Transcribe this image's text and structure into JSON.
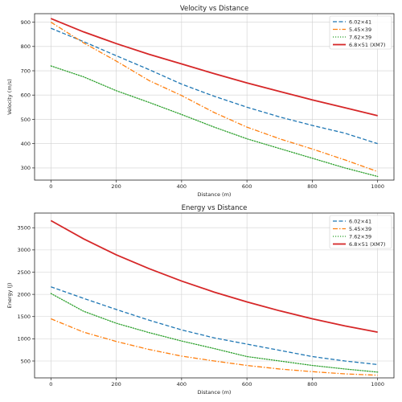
{
  "chart_data": [
    {
      "type": "line",
      "title": "Velocity vs Distance",
      "xlabel": "Distance (m)",
      "ylabel": "Velocity (m/s)",
      "xlim": [
        -50,
        1050
      ],
      "ylim": [
        250,
        935
      ],
      "xticks": [
        0,
        200,
        400,
        600,
        800,
        1000
      ],
      "yticks": [
        300,
        400,
        500,
        600,
        700,
        800,
        900
      ],
      "grid": true,
      "legend_position": "top-right",
      "x": [
        0,
        100,
        200,
        300,
        400,
        500,
        600,
        700,
        800,
        900,
        1000
      ],
      "series": [
        {
          "name": "6.02×41",
          "color": "#1f77b4",
          "style": "dashed",
          "values": [
            875,
            820,
            762,
            705,
            645,
            595,
            550,
            510,
            475,
            443,
            400
          ]
        },
        {
          "name": "5.45×39",
          "color": "#ff7f0e",
          "style": "dashdot",
          "values": [
            900,
            815,
            740,
            660,
            598,
            528,
            468,
            420,
            378,
            333,
            285
          ]
        },
        {
          "name": "7.62×39",
          "color": "#2ca02c",
          "style": "dotted",
          "values": [
            720,
            675,
            618,
            570,
            520,
            468,
            420,
            380,
            340,
            300,
            265
          ]
        },
        {
          "name": "6.8×51 (XM7)",
          "color": "#d62728",
          "style": "solid",
          "values": [
            915,
            860,
            812,
            768,
            728,
            688,
            650,
            615,
            580,
            548,
            515
          ]
        }
      ]
    },
    {
      "type": "line",
      "title": "Energy vs Distance",
      "xlabel": "Distance (m)",
      "ylabel": "Energy (J)",
      "xlim": [
        -50,
        1050
      ],
      "ylim": [
        120,
        3830
      ],
      "xticks": [
        0,
        200,
        400,
        600,
        800,
        1000
      ],
      "yticks": [
        500,
        1000,
        1500,
        2000,
        2500,
        3000,
        3500
      ],
      "grid": true,
      "legend_position": "top-right",
      "x": [
        0,
        100,
        200,
        300,
        400,
        500,
        600,
        700,
        800,
        900,
        1000
      ],
      "series": [
        {
          "name": "6.02×41",
          "color": "#1f77b4",
          "style": "dashed",
          "values": [
            2170,
            1910,
            1660,
            1420,
            1200,
            1020,
            880,
            740,
            600,
            500,
            420
          ]
        },
        {
          "name": "5.45×39",
          "color": "#ff7f0e",
          "style": "dashdot",
          "values": [
            1450,
            1150,
            940,
            760,
            610,
            500,
            400,
            320,
            260,
            210,
            180
          ]
        },
        {
          "name": "7.62×39",
          "color": "#2ca02c",
          "style": "dotted",
          "values": [
            2020,
            1620,
            1350,
            1140,
            950,
            780,
            600,
            500,
            400,
            320,
            250
          ]
        },
        {
          "name": "6.8×51 (XM7)",
          "color": "#d62728",
          "style": "solid",
          "values": [
            3660,
            3250,
            2890,
            2580,
            2300,
            2050,
            1830,
            1630,
            1450,
            1290,
            1150
          ]
        }
      ]
    }
  ]
}
